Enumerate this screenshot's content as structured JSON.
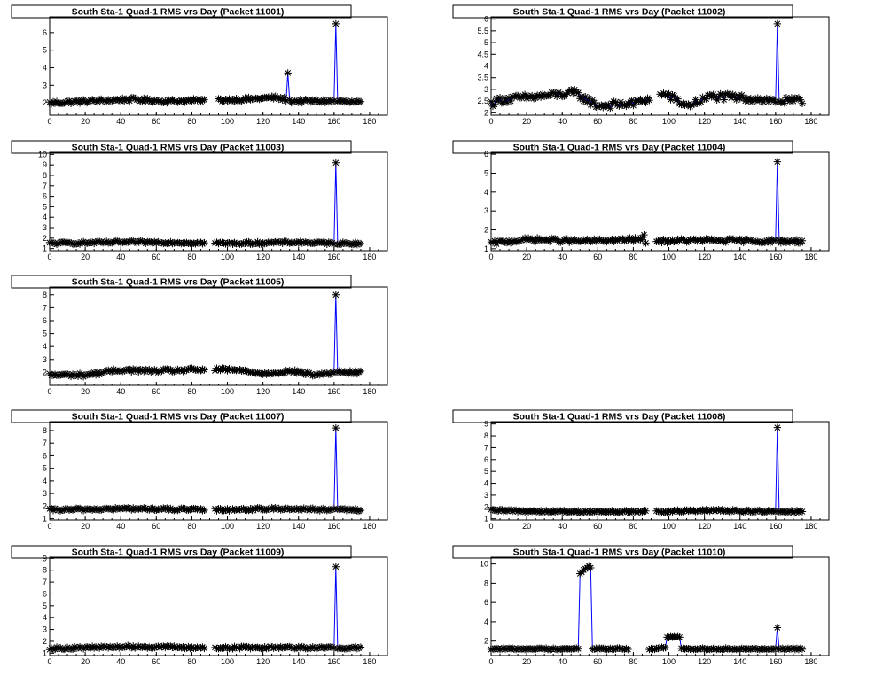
{
  "colors": {
    "line": "#0000ff",
    "marker": "#000000",
    "frame": "#000000",
    "background": "#ffffff"
  },
  "chart_data": [
    {
      "type": "line",
      "title": "South Sta-1 Quad-1 RMS vrs Day (Packet 11001)",
      "xlim": [
        0,
        190
      ],
      "ylim": [
        1.3,
        6.9
      ],
      "xticks": [
        0,
        20,
        40,
        60,
        80,
        100,
        120,
        140,
        160,
        180
      ],
      "yticks": [
        2,
        3,
        4,
        5,
        6
      ],
      "baseline": 2.0,
      "noise": 0.1,
      "gaps": [
        [
          88,
          94
        ]
      ],
      "x_end": 175,
      "series": [
        {
          "points": [
            [
              0,
              2.0
            ],
            [
              45,
              2.2
            ],
            [
              66,
              2.1
            ],
            [
              110,
              2.2
            ],
            [
              126,
              2.3
            ],
            [
              133,
              2.2
            ],
            [
              134,
              3.7
            ],
            [
              135,
              2.1
            ],
            [
              160,
              2.1
            ],
            [
              161,
              6.5
            ],
            [
              162,
              2.1
            ],
            [
              175,
              2.0
            ]
          ]
        }
      ]
    },
    {
      "type": "line",
      "title": "South Sta-1 Quad-1 RMS vrs Day (Packet 11002)",
      "xlim": [
        0,
        190
      ],
      "ylim": [
        1.9,
        6.1
      ],
      "xticks": [
        0,
        20,
        40,
        60,
        80,
        100,
        120,
        140,
        160,
        180
      ],
      "yticks": [
        2,
        2.5,
        3,
        3.5,
        4,
        4.5,
        5,
        5.5,
        6
      ],
      "baseline": 2.45,
      "noise": 0.15,
      "gaps": [
        [
          90,
          94
        ]
      ],
      "x_end": 175,
      "series": [
        {
          "points": [
            [
              0,
              2.4
            ],
            [
              5,
              2.55
            ],
            [
              27,
              2.7
            ],
            [
              47,
              2.85
            ],
            [
              60,
              2.3
            ],
            [
              80,
              2.4
            ],
            [
              98,
              2.8
            ],
            [
              110,
              2.3
            ],
            [
              124,
              2.7
            ],
            [
              150,
              2.6
            ],
            [
              160,
              2.5
            ],
            [
              161,
              5.8
            ],
            [
              162,
              2.5
            ],
            [
              175,
              2.5
            ]
          ]
        }
      ]
    },
    {
      "type": "line",
      "title": "South Sta-1 Quad-1 RMS vrs Day (Packet 11003)",
      "xlim": [
        0,
        190
      ],
      "ylim": [
        0.8,
        10.2
      ],
      "xticks": [
        0,
        20,
        40,
        60,
        80,
        100,
        120,
        140,
        160,
        180
      ],
      "yticks": [
        1,
        2,
        3,
        4,
        5,
        6,
        7,
        8,
        9,
        10
      ],
      "baseline": 1.5,
      "noise": 0.12,
      "gaps": [
        [
          88,
          92
        ]
      ],
      "x_end": 175,
      "series": [
        {
          "points": [
            [
              0,
              1.5
            ],
            [
              40,
              1.6
            ],
            [
              65,
              1.6
            ],
            [
              100,
              1.5
            ],
            [
              140,
              1.6
            ],
            [
              160,
              1.5
            ],
            [
              161,
              9.2
            ],
            [
              162,
              1.5
            ],
            [
              175,
              1.5
            ]
          ]
        }
      ]
    },
    {
      "type": "line",
      "title": "South Sta-1 Quad-1 RMS vrs Day (Packet 11004)",
      "xlim": [
        0,
        190
      ],
      "ylim": [
        0.9,
        6.1
      ],
      "xticks": [
        0,
        20,
        40,
        60,
        80,
        100,
        120,
        140,
        160,
        180
      ],
      "yticks": [
        1,
        2,
        3,
        4,
        5,
        6
      ],
      "baseline": 1.4,
      "noise": 0.1,
      "gaps": [
        [
          88,
          92
        ]
      ],
      "x_end": 175,
      "series": [
        {
          "points": [
            [
              0,
              1.3
            ],
            [
              22,
              1.5
            ],
            [
              50,
              1.4
            ],
            [
              85,
              1.5
            ],
            [
              86,
              1.65
            ],
            [
              87,
              1.4
            ],
            [
              120,
              1.45
            ],
            [
              160,
              1.4
            ],
            [
              161,
              5.6
            ],
            [
              162,
              1.4
            ],
            [
              175,
              1.4
            ]
          ]
        }
      ]
    },
    {
      "type": "line",
      "title": "South Sta-1 Quad-1 RMS vrs Day (Packet 11005)",
      "xlim": [
        0,
        190
      ],
      "ylim": [
        1.0,
        8.6
      ],
      "xticks": [
        0,
        20,
        40,
        60,
        80,
        100,
        120,
        140,
        160,
        180
      ],
      "yticks": [
        2,
        3,
        4,
        5,
        6,
        7,
        8
      ],
      "baseline": 1.9,
      "noise": 0.13,
      "gaps": [
        [
          88,
          92
        ]
      ],
      "x_end": 175,
      "series": [
        {
          "points": [
            [
              0,
              1.8
            ],
            [
              20,
              1.8
            ],
            [
              40,
              2.2
            ],
            [
              60,
              2.1
            ],
            [
              80,
              2.2
            ],
            [
              104,
              2.2
            ],
            [
              120,
              1.9
            ],
            [
              136,
              2.1
            ],
            [
              150,
              1.8
            ],
            [
              160,
              2.0
            ],
            [
              161,
              8.0
            ],
            [
              162,
              2.0
            ],
            [
              175,
              2.0
            ]
          ]
        }
      ]
    },
    null,
    {
      "type": "line",
      "title": "South Sta-1 Quad-1 RMS vrs Day (Packet 11007)",
      "xlim": [
        0,
        190
      ],
      "ylim": [
        0.9,
        8.7
      ],
      "xticks": [
        0,
        20,
        40,
        60,
        80,
        100,
        120,
        140,
        160,
        180
      ],
      "yticks": [
        1,
        2,
        3,
        4,
        5,
        6,
        7,
        8
      ],
      "baseline": 1.75,
      "noise": 0.1,
      "gaps": [
        [
          88,
          92
        ]
      ],
      "x_end": 175,
      "series": [
        {
          "points": [
            [
              0,
              1.7
            ],
            [
              45,
              1.8
            ],
            [
              90,
              1.7
            ],
            [
              130,
              1.8
            ],
            [
              160,
              1.7
            ],
            [
              161,
              8.2
            ],
            [
              162,
              1.7
            ],
            [
              175,
              1.7
            ]
          ]
        }
      ]
    },
    {
      "type": "line",
      "title": "South Sta-1 Quad-1 RMS vrs Day (Packet 11008)",
      "xlim": [
        0,
        190
      ],
      "ylim": [
        0.9,
        9.2
      ],
      "xticks": [
        0,
        20,
        40,
        60,
        80,
        100,
        120,
        140,
        160,
        180
      ],
      "yticks": [
        1,
        2,
        3,
        4,
        5,
        6,
        7,
        8,
        9
      ],
      "baseline": 1.6,
      "noise": 0.1,
      "gaps": [
        [
          88,
          92
        ]
      ],
      "x_end": 175,
      "series": [
        {
          "points": [
            [
              0,
              1.7
            ],
            [
              45,
              1.6
            ],
            [
              90,
              1.6
            ],
            [
              130,
              1.7
            ],
            [
              160,
              1.6
            ],
            [
              161,
              8.7
            ],
            [
              162,
              1.6
            ],
            [
              175,
              1.6
            ]
          ]
        }
      ]
    },
    {
      "type": "line",
      "title": "South Sta-1 Quad-1 RMS vrs Day (Packet 11009)",
      "xlim": [
        0,
        190
      ],
      "ylim": [
        0.8,
        9.1
      ],
      "xticks": [
        0,
        20,
        40,
        60,
        80,
        100,
        120,
        140,
        160,
        180
      ],
      "yticks": [
        1,
        2,
        3,
        4,
        5,
        6,
        7,
        8,
        9
      ],
      "baseline": 1.45,
      "noise": 0.1,
      "gaps": [
        [
          88,
          92
        ]
      ],
      "x_end": 175,
      "series": [
        {
          "points": [
            [
              0,
              1.4
            ],
            [
              45,
              1.55
            ],
            [
              90,
              1.45
            ],
            [
              130,
              1.5
            ],
            [
              160,
              1.45
            ],
            [
              161,
              8.3
            ],
            [
              162,
              1.45
            ],
            [
              175,
              1.45
            ]
          ]
        }
      ]
    },
    {
      "type": "line",
      "title": "South Sta-1 Quad-1 RMS vrs Day (Packet 11010)",
      "xlim": [
        0,
        190
      ],
      "ylim": [
        0.5,
        10.7
      ],
      "xticks": [
        0,
        20,
        40,
        60,
        80,
        100,
        120,
        140,
        160,
        180
      ],
      "yticks": [
        2,
        4,
        6,
        8,
        10
      ],
      "baseline": 1.2,
      "noise": 0.08,
      "gaps": [
        [
          78,
          88
        ]
      ],
      "x_end": 175,
      "series": [
        {
          "points": [
            [
              0,
              1.2
            ],
            [
              49,
              1.2
            ],
            [
              50,
              9.0
            ],
            [
              53,
              9.5
            ],
            [
              55,
              9.8
            ],
            [
              56,
              9.6
            ],
            [
              57,
              1.2
            ],
            [
              92,
              1.2
            ],
            [
              96,
              1.3
            ],
            [
              98,
              1.3
            ],
            [
              99,
              2.4
            ],
            [
              106,
              2.4
            ],
            [
              107,
              1.2
            ],
            [
              160,
              1.2
            ],
            [
              161,
              3.4
            ],
            [
              162,
              1.2
            ],
            [
              175,
              1.2
            ]
          ]
        }
      ]
    }
  ]
}
